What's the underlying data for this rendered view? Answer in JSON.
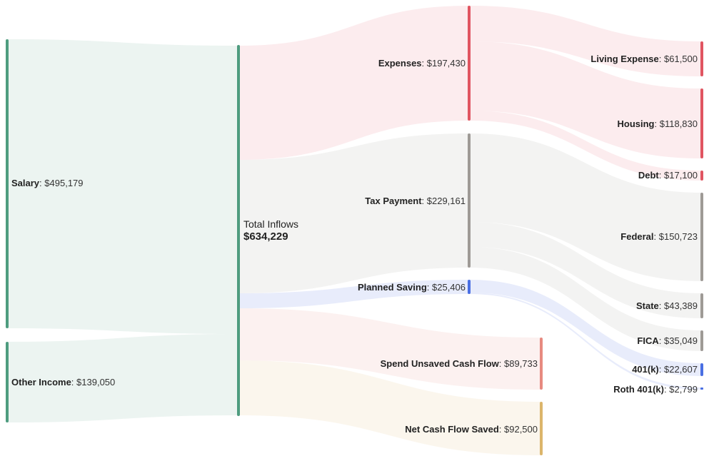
{
  "colors": {
    "income": "#4e9c7f",
    "expenses": "#e05561",
    "tax": "#9e9a96",
    "saving": "#4a6fe3",
    "unsaved": "#e78a80",
    "saved": "#dcb56b"
  },
  "nodes": {
    "salary": {
      "label": "Salary",
      "value": "$495,179"
    },
    "other_income": {
      "label": "Other Income",
      "value": "$139,050"
    },
    "total_inflows": {
      "label": "Total Inflows",
      "value": "$634,229"
    },
    "expenses": {
      "label": "Expenses",
      "value": "$197,430"
    },
    "tax_payment": {
      "label": "Tax Payment",
      "value": "$229,161"
    },
    "planned_saving": {
      "label": "Planned Saving",
      "value": "$25,406"
    },
    "spend_unsaved": {
      "label": "Spend Unsaved Cash Flow",
      "value": "$89,733"
    },
    "net_saved": {
      "label": "Net Cash Flow Saved",
      "value": "$92,500"
    },
    "living_expense": {
      "label": "Living Expense",
      "value": "$61,500"
    },
    "housing": {
      "label": "Housing",
      "value": "$118,830"
    },
    "debt": {
      "label": "Debt",
      "value": "$17,100"
    },
    "federal": {
      "label": "Federal",
      "value": "$150,723"
    },
    "state": {
      "label": "State",
      "value": "$43,389"
    },
    "fica": {
      "label": "FICA",
      "value": "$35,049"
    },
    "k401": {
      "label": "401(k)",
      "value": "$22,607"
    },
    "roth401k": {
      "label": "Roth 401(k)",
      "value": "$2,799"
    }
  },
  "links": [
    {
      "from": "Salary",
      "to": "Total Inflows",
      "value": 495179
    },
    {
      "from": "Other Income",
      "to": "Total Inflows",
      "value": 139050
    },
    {
      "from": "Total Inflows",
      "to": "Expenses",
      "value": 197430
    },
    {
      "from": "Total Inflows",
      "to": "Tax Payment",
      "value": 229161
    },
    {
      "from": "Total Inflows",
      "to": "Planned Saving",
      "value": 25406
    },
    {
      "from": "Total Inflows",
      "to": "Spend Unsaved Cash Flow",
      "value": 89733
    },
    {
      "from": "Total Inflows",
      "to": "Net Cash Flow Saved",
      "value": 92500
    },
    {
      "from": "Expenses",
      "to": "Living Expense",
      "value": 61500
    },
    {
      "from": "Expenses",
      "to": "Housing",
      "value": 118830
    },
    {
      "from": "Expenses",
      "to": "Debt",
      "value": 17100
    },
    {
      "from": "Tax Payment",
      "to": "Federal",
      "value": 150723
    },
    {
      "from": "Tax Payment",
      "to": "State",
      "value": 43389
    },
    {
      "from": "Tax Payment",
      "to": "FICA",
      "value": 35049
    },
    {
      "from": "Planned Saving",
      "to": "401(k)",
      "value": 22607
    },
    {
      "from": "Planned Saving",
      "to": "Roth 401(k)",
      "value": 2799
    }
  ]
}
